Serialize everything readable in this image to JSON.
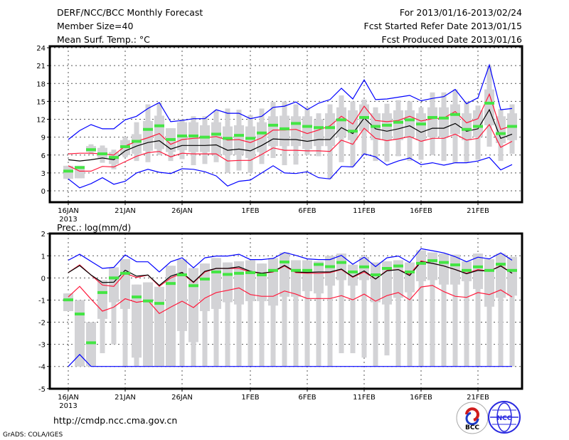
{
  "header": {
    "title": "DERF/NCC/BCC Monthly Forecast",
    "member_size": "Member Size=40",
    "variable": "Mean Surf. Temp.: °C",
    "period": "For 2013/01/16-2013/02/24",
    "fcst_started": "Fcst Started Refer Date 2013/01/15",
    "fcst_produced": "Fcst Produced Date 2013/01/16"
  },
  "footer": {
    "url": "http://cmdp.ncc.cma.gov.cn",
    "grads": "GrADS: COLA/IGES",
    "logo_bcc": "BCC",
    "logo_ncc": "NCC"
  },
  "colors": {
    "extreme": "#0000ff",
    "spread": "#ff1a3c",
    "mean": "#000000",
    "observed": "#44e544",
    "box": "#d3d3d6"
  },
  "chart_data": [
    {
      "type": "box",
      "title": "Mean Surf. Temp.: °C",
      "xlabel": "",
      "ylabel": "°C",
      "ylim": [
        -1.8,
        24
      ],
      "yticks": [
        "24",
        "21",
        "18",
        "15",
        "12",
        "9",
        "6",
        "3",
        "0"
      ],
      "ytick_values": [
        24,
        21,
        18,
        15,
        12,
        9,
        6,
        3,
        0
      ],
      "xtick_labels": [
        "16JAN",
        "21JAN",
        "26JAN",
        "1FEB",
        "6FEB",
        "11FEB",
        "16FEB",
        "21FEB"
      ],
      "xtick_days": [
        0,
        5,
        10,
        16,
        21,
        26,
        31,
        36
      ],
      "xtick_year": "2013",
      "grid": true,
      "n_days": 40,
      "series": [
        {
          "name": "max",
          "color": "#0000ff",
          "values": [
            8.6,
            10.1,
            11.1,
            10.4,
            10.4,
            11.9,
            12.5,
            13.8,
            14.8,
            11.6,
            11.8,
            12.1,
            12.1,
            13.6,
            13.0,
            13.0,
            12.1,
            12.5,
            14.0,
            14.2,
            14.9,
            13.6,
            14.7,
            15.3,
            17.2,
            15.4,
            18.6,
            15.3,
            15.4,
            15.7,
            16.0,
            15.1,
            15.5,
            15.8,
            17.0,
            14.6,
            15.6,
            21.1,
            13.6,
            13.8
          ]
        },
        {
          "name": "upper",
          "color": "#ff1a3c",
          "values": [
            6.2,
            6.3,
            6.3,
            6.2,
            6.0,
            7.5,
            8.3,
            8.9,
            9.6,
            7.8,
            8.6,
            8.8,
            8.9,
            9.1,
            8.5,
            8.6,
            8.1,
            8.9,
            10.2,
            10.2,
            10.3,
            9.6,
            10.2,
            10.9,
            12.5,
            11.2,
            14.2,
            11.8,
            11.6,
            11.8,
            12.5,
            11.7,
            12.1,
            12.2,
            13.3,
            11.4,
            12.1,
            16.2,
            10.3,
            10.9
          ]
        },
        {
          "name": "mean",
          "color": "#000000",
          "values": [
            5.2,
            5.0,
            5.2,
            5.5,
            5.2,
            6.7,
            7.5,
            8.1,
            8.4,
            7.0,
            7.6,
            7.6,
            7.6,
            7.7,
            6.8,
            7.0,
            6.7,
            7.6,
            8.7,
            8.6,
            8.6,
            8.3,
            8.6,
            8.6,
            10.6,
            9.6,
            12.2,
            10.4,
            10.0,
            10.4,
            10.9,
            9.8,
            10.5,
            10.5,
            11.3,
            10.0,
            10.4,
            13.6,
            8.8,
            9.5
          ]
        },
        {
          "name": "lower",
          "color": "#ff1a3c",
          "values": [
            4.2,
            3.3,
            3.3,
            4.1,
            4.0,
            4.9,
            5.8,
            6.4,
            6.6,
            5.7,
            6.3,
            6.2,
            6.2,
            6.2,
            5.0,
            5.1,
            5.1,
            6.1,
            7.2,
            6.8,
            6.8,
            6.7,
            6.7,
            6.6,
            8.5,
            7.8,
            10.5,
            8.8,
            8.4,
            8.7,
            9.1,
            8.3,
            8.8,
            8.8,
            9.5,
            8.5,
            8.8,
            11.1,
            7.3,
            8.3
          ]
        },
        {
          "name": "min",
          "color": "#0000ff",
          "values": [
            2.0,
            0.5,
            1.2,
            2.2,
            1.1,
            1.6,
            3.0,
            3.6,
            3.1,
            2.9,
            3.7,
            3.6,
            3.2,
            2.5,
            0.8,
            1.6,
            1.8,
            3.0,
            4.2,
            3.0,
            2.9,
            3.2,
            2.2,
            2.0,
            4.1,
            4.0,
            6.2,
            5.7,
            4.3,
            5.0,
            5.5,
            4.4,
            4.7,
            4.3,
            4.7,
            4.7,
            5.0,
            5.6,
            3.5,
            4.4
          ]
        }
      ],
      "observed": [
        3.3,
        3.9,
        6.9,
        6.2,
        5.6,
        7.4,
        8.3,
        10.3,
        10.9,
        8.6,
        9.2,
        9.2,
        9.0,
        9.5,
        8.8,
        9.3,
        8.8,
        9.7,
        11.0,
        10.4,
        11.3,
        10.8,
        10.6,
        10.6,
        11.9,
        10.0,
        12.3,
        10.8,
        11.0,
        11.5,
        11.9,
        11.2,
        12.3,
        12.2,
        12.8,
        10.3,
        10.8,
        14.7,
        9.6,
        10.8
      ],
      "box_high": [
        4.2,
        4.2,
        7.5,
        7.2,
        6.5,
        8.5,
        9.5,
        11.7,
        12.6,
        10.5,
        11.5,
        11.5,
        11.0,
        11.5,
        10.8,
        11.0,
        10.8,
        11.5,
        12.5,
        12.6,
        12.5,
        12.5,
        12.0,
        13.0,
        14.0,
        13.5,
        14.5,
        13.0,
        13.0,
        13.5,
        13.5,
        13.0,
        14.0,
        14.0,
        14.5,
        13.0,
        13.5,
        17.0,
        12.5,
        13.0
      ],
      "box_low": [
        2.0,
        2.1,
        6.5,
        5.5,
        4.5,
        6.0,
        6.2,
        6.7,
        7.0,
        6.5,
        6.8,
        6.5,
        6.5,
        6.0,
        6.0,
        6.0,
        5.5,
        6.5,
        7.5,
        7.5,
        7.5,
        7.0,
        7.5,
        7.5,
        9.0,
        8.5,
        10.0,
        8.5,
        8.5,
        8.5,
        9.0,
        8.5,
        9.0,
        9.0,
        9.5,
        8.5,
        9.0,
        11.0,
        8.0,
        8.5
      ],
      "whisker_high": [
        4.2,
        4.2,
        7.8,
        7.6,
        6.9,
        9.0,
        11.5,
        14.5,
        14.8,
        10.5,
        12.0,
        12.5,
        12.5,
        13.5,
        13.8,
        13.6,
        12.7,
        13.8,
        14.9,
        15.0,
        14.5,
        14.0,
        13.0,
        14.5,
        16.0,
        15.0,
        15.3,
        14.0,
        14.6,
        15.2,
        15.0,
        14.0,
        16.5,
        16.5,
        17.0,
        15.0,
        14.3,
        21.0,
        13.7,
        14.5
      ],
      "whisker_low": [
        2.0,
        2.1,
        6.1,
        4.7,
        3.6,
        5.6,
        5.0,
        4.8,
        6.0,
        5.0,
        5.3,
        4.3,
        4.5,
        4.8,
        3.0,
        3.4,
        3.0,
        4.5,
        5.5,
        4.3,
        4.4,
        6.0,
        5.8,
        2.0,
        4.8,
        4.1,
        6.0,
        5.0,
        4.9,
        5.8,
        5.0,
        5.2,
        6.0,
        5.0,
        4.7,
        4.8,
        5.2,
        7.4,
        5.0,
        6.2
      ]
    },
    {
      "type": "box",
      "title": "Prec.: log(mm/d)",
      "xlabel": "",
      "ylabel": "log(mm/d)",
      "ylim": [
        -5,
        2
      ],
      "yticks": [
        "2",
        "1",
        "0",
        "-1",
        "-2",
        "-3",
        "-4",
        "-5"
      ],
      "ytick_values": [
        2,
        1,
        0,
        -1,
        -2,
        -3,
        -4,
        -5
      ],
      "xtick_labels": [
        "16JAN",
        "21JAN",
        "26JAN",
        "1FEB",
        "6FEB",
        "11FEB",
        "16FEB",
        "21FEB"
      ],
      "xtick_days": [
        0,
        5,
        10,
        16,
        21,
        26,
        31,
        36
      ],
      "xtick_year": "2013",
      "grid": true,
      "n_days": 40,
      "series": [
        {
          "name": "max",
          "color": "#0000ff",
          "values": [
            0.8,
            1.07,
            0.75,
            0.43,
            0.48,
            1.04,
            0.73,
            0.73,
            0.27,
            0.73,
            0.91,
            0.46,
            0.91,
            0.99,
            0.99,
            1.07,
            0.83,
            0.83,
            0.88,
            1.15,
            1.02,
            0.86,
            0.83,
            0.83,
            1.02,
            0.62,
            0.94,
            0.51,
            0.91,
            0.99,
            0.7,
            1.32,
            1.23,
            1.13,
            0.96,
            0.73,
            0.94,
            0.86,
            1.13,
            0.8
          ]
        },
        {
          "name": "upper",
          "color": "#ff1a3c",
          "values": [
            0.24,
            0.59,
            0.13,
            -0.32,
            -0.38,
            0.21,
            0.02,
            0.13,
            -0.38,
            0.0,
            0.21,
            -0.21,
            0.27,
            0.43,
            0.43,
            0.43,
            0.27,
            0.21,
            0.27,
            0.54,
            0.24,
            0.21,
            0.21,
            0.24,
            0.38,
            0.03,
            0.27,
            -0.05,
            0.34,
            0.38,
            0.16,
            0.77,
            0.66,
            0.54,
            0.38,
            0.21,
            0.38,
            0.3,
            0.56,
            0.21
          ]
        },
        {
          "name": "mean",
          "color": "#000000",
          "values": [
            0.24,
            0.56,
            0.13,
            -0.21,
            -0.19,
            0.35,
            0.08,
            0.13,
            -0.34,
            0.08,
            0.25,
            -0.19,
            0.3,
            0.43,
            0.43,
            0.5,
            0.3,
            0.21,
            0.29,
            0.57,
            0.27,
            0.25,
            0.27,
            0.27,
            0.4,
            0.05,
            0.32,
            -0.05,
            0.32,
            0.38,
            0.11,
            0.73,
            0.66,
            0.54,
            0.38,
            0.19,
            0.34,
            0.3,
            0.54,
            0.21
          ]
        },
        {
          "name": "lower",
          "color": "#ff1a3c",
          "values": [
            -0.86,
            -0.38,
            -0.96,
            -1.5,
            -1.32,
            -0.94,
            -1.1,
            -1.02,
            -1.61,
            -1.32,
            -1.05,
            -1.34,
            -0.91,
            -0.66,
            -0.56,
            -0.45,
            -0.75,
            -0.83,
            -0.83,
            -0.59,
            -0.73,
            -0.93,
            -0.93,
            -0.93,
            -0.8,
            -0.99,
            -0.73,
            -1.05,
            -0.8,
            -0.66,
            -0.99,
            -0.41,
            -0.34,
            -0.62,
            -0.83,
            -0.88,
            -0.66,
            -0.75,
            -0.54,
            -0.86
          ]
        },
        {
          "name": "min",
          "color": "#0000ff",
          "values": [
            -4,
            -3.46,
            -4,
            -4,
            -4,
            -4,
            -4,
            -4,
            -4,
            -4,
            -4,
            -4,
            -4,
            -4,
            -4,
            -4,
            -4,
            -4,
            -4,
            -4,
            -4,
            -4,
            -4,
            -4,
            -4,
            -4,
            -4,
            -4,
            -4,
            -4,
            -4,
            -4,
            -4,
            -4,
            -4,
            -4,
            -4,
            -4,
            -4,
            -4
          ]
        }
      ],
      "observed": [
        -0.99,
        -1.63,
        -2.93,
        -0.66,
        0.0,
        0.21,
        -0.86,
        -1.04,
        -1.15,
        -0.25,
        0.14,
        -0.35,
        -0.05,
        0.27,
        0.16,
        0.21,
        0.24,
        0.14,
        0.34,
        0.72,
        0.34,
        0.34,
        0.61,
        0.51,
        0.7,
        0.27,
        0.5,
        0.14,
        0.43,
        0.54,
        0.27,
        0.66,
        0.78,
        0.7,
        0.59,
        0.34,
        0.5,
        0.34,
        0.62,
        0.34
      ],
      "box_high": [
        -0.7,
        -1.0,
        -2.0,
        -0.1,
        0.48,
        0.85,
        -0.3,
        -0.2,
        -0.4,
        0.55,
        0.85,
        0.45,
        0.65,
        0.9,
        0.7,
        0.75,
        0.8,
        0.65,
        0.9,
        1.15,
        0.8,
        0.8,
        0.75,
        1.0,
        1.1,
        0.6,
        0.95,
        0.7,
        0.75,
        0.8,
        0.7,
        1.25,
        1.15,
        1.1,
        1.05,
        0.75,
        1.1,
        0.85,
        1.1,
        0.95
      ],
      "box_low": [
        -1.5,
        -4.0,
        -4.0,
        -1.85,
        -1.1,
        -1.4,
        -3.6,
        -4.0,
        -4.0,
        -4.0,
        -2.4,
        -2.9,
        -1.5,
        -1.4,
        -1.1,
        -1.2,
        -1.05,
        -1.05,
        -1.25,
        -0.85,
        -0.85,
        -0.6,
        -0.7,
        -0.35,
        -0.1,
        -0.35,
        -0.1,
        -1.1,
        -1.2,
        -0.9,
        -0.65,
        -0.15,
        -0.1,
        -0.3,
        -0.3,
        -0.15,
        -0.5,
        -1.3,
        -0.9,
        -0.8
      ],
      "whisker_high": [
        -0.7,
        -1.0,
        -2.0,
        -0.1,
        0.48,
        0.85,
        -0.3,
        -0.2,
        -0.4,
        0.55,
        0.85,
        0.45,
        0.65,
        0.9,
        0.7,
        0.75,
        0.8,
        0.65,
        0.9,
        1.15,
        0.8,
        0.8,
        0.75,
        1.0,
        1.1,
        0.6,
        0.95,
        0.7,
        0.75,
        0.8,
        0.7,
        1.25,
        1.15,
        1.1,
        1.05,
        0.75,
        1.1,
        0.85,
        1.1,
        0.95
      ],
      "whisker_low": [
        -1.5,
        -4,
        -4,
        -3.4,
        -3.0,
        -4,
        -4,
        -4,
        -4,
        -4,
        -4,
        -4,
        -4,
        -4,
        -4,
        -4,
        -4,
        -4,
        -4,
        -4,
        -4,
        -4,
        -4,
        -4,
        -3.4,
        -3.4,
        -3.6,
        -4,
        -3.5,
        -4,
        -4,
        -4,
        -4,
        -4,
        -4,
        -4,
        -4,
        -4,
        -4,
        -4
      ]
    }
  ]
}
